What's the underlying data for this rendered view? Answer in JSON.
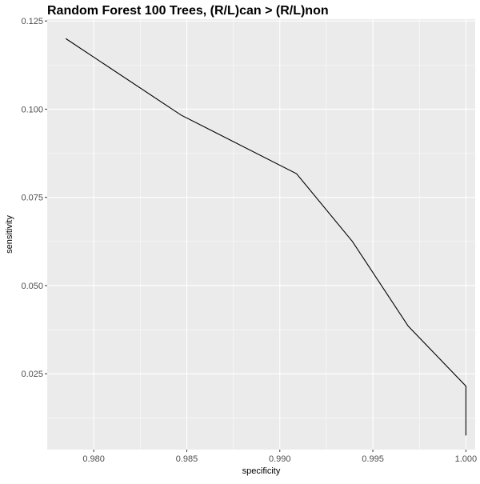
{
  "chart_data": {
    "type": "line",
    "title": "Random Forest 100 Trees, (R/L)can > (R/L)non",
    "xlabel": "specificity",
    "ylabel": "sensitivity",
    "xlim": [
      0.9775,
      1.0005
    ],
    "ylim": [
      0.0035,
      0.1255
    ],
    "x_ticks": [
      0.98,
      0.985,
      0.99,
      0.995,
      1.0
    ],
    "x_tick_labels": [
      "0.980",
      "0.985",
      "0.990",
      "0.995",
      "1.000"
    ],
    "y_ticks": [
      0.025,
      0.05,
      0.075,
      0.1,
      0.125
    ],
    "y_tick_labels": [
      "0.025",
      "0.050",
      "0.075",
      "0.100",
      "0.125"
    ],
    "grid": true,
    "legend": "none",
    "series": [
      {
        "x": [
          0.9785,
          0.9847,
          0.9909,
          0.9939,
          0.9969,
          1.0,
          1.0
        ],
        "y": [
          0.12,
          0.0983,
          0.0817,
          0.0625,
          0.0385,
          0.0215,
          0.0075
        ]
      }
    ],
    "colors": {
      "panel": "#ebebeb",
      "grid_major": "#ffffff",
      "line": "#000000"
    }
  }
}
